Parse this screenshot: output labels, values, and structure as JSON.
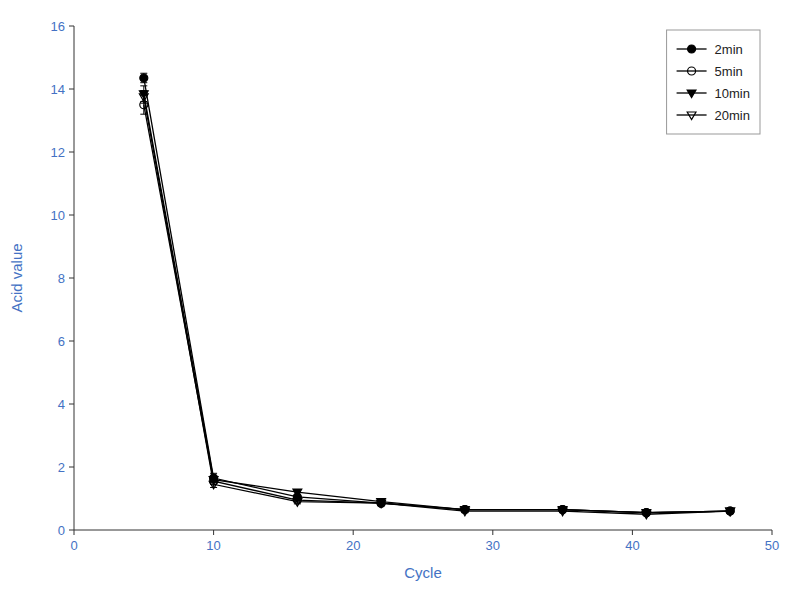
{
  "chart_data": {
    "type": "line",
    "xlabel": "Cycle",
    "ylabel": "Acid value",
    "x": [
      5,
      10,
      16,
      22,
      28,
      35,
      41,
      47
    ],
    "series": [
      {
        "name": "2min",
        "color": "#000000",
        "marker": "circle",
        "values": [
          14.35,
          1.65,
          1.05,
          0.85,
          0.65,
          0.65,
          0.55,
          0.6
        ],
        "errors": [
          0.15,
          0.15,
          0.08,
          0.05,
          0.05,
          0.05,
          0.04,
          0.05
        ]
      },
      {
        "name": "5min",
        "color": "#000000",
        "marker": "open-circle",
        "values": [
          13.5,
          1.55,
          0.95,
          0.85,
          0.65,
          0.65,
          0.55,
          0.6
        ],
        "errors": [
          0.3,
          0.1,
          0.07,
          0.05,
          0.05,
          0.05,
          0.04,
          0.05
        ]
      },
      {
        "name": "10min",
        "color": "#000000",
        "marker": "triangle-down",
        "values": [
          13.85,
          1.6,
          1.2,
          0.9,
          0.65,
          0.65,
          0.55,
          0.6
        ],
        "errors": [
          0.25,
          0.1,
          0.08,
          0.05,
          0.05,
          0.05,
          0.04,
          0.05
        ]
      },
      {
        "name": "20min",
        "color": "#000000",
        "marker": "open-triangle-down",
        "values": [
          13.75,
          1.45,
          0.9,
          0.85,
          0.6,
          0.6,
          0.5,
          0.6
        ],
        "errors": [
          0.2,
          0.1,
          0.07,
          0.05,
          0.05,
          0.05,
          0.04,
          0.05
        ]
      }
    ],
    "xlim": [
      0,
      50
    ],
    "ylim": [
      0,
      16
    ],
    "xticks": [
      0,
      10,
      20,
      30,
      40,
      50
    ],
    "yticks": [
      0,
      2,
      4,
      6,
      8,
      10,
      12,
      14,
      16
    ],
    "grid": false,
    "legend": "upper right"
  }
}
